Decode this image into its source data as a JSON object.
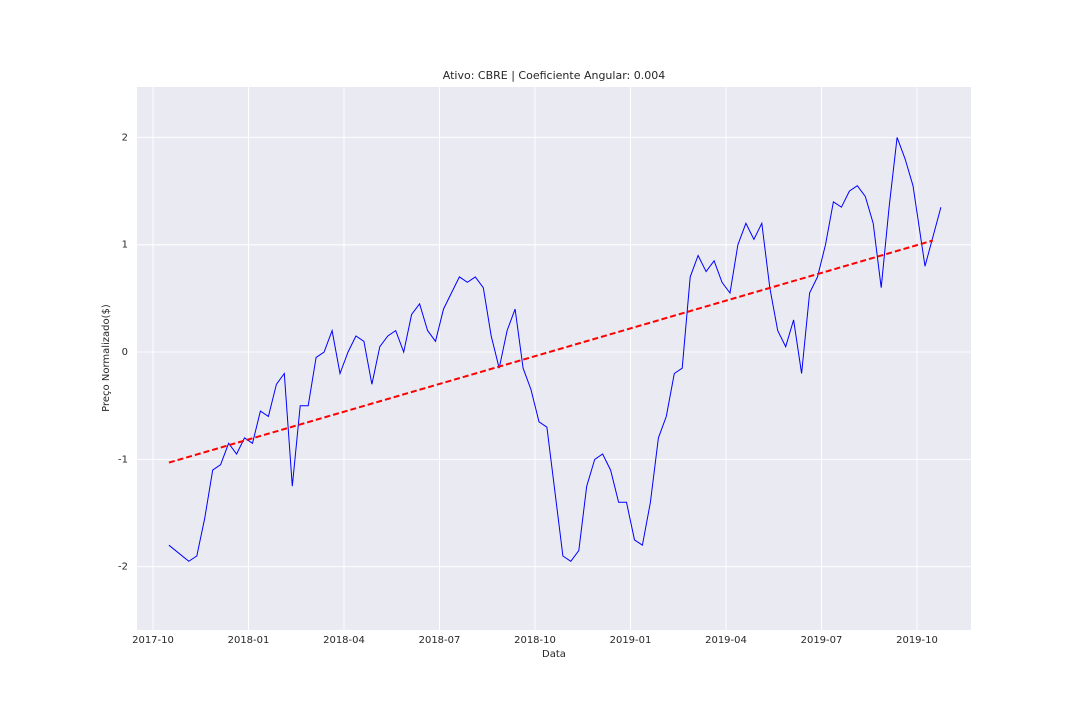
{
  "chart_data": {
    "type": "line",
    "title": "Ativo: CBRE | Coeficiente Angular: 0.004",
    "xlabel": "Data",
    "ylabel": "Preço Normalizado($)",
    "grid": true,
    "ylim": [
      -2.59,
      2.47
    ],
    "yticks": [
      -2,
      -1,
      0,
      1,
      2
    ],
    "xticks": [
      "2017-10",
      "2018-01",
      "2018-04",
      "2018-07",
      "2018-10",
      "2019-01",
      "2019-04",
      "2019-07",
      "2019-10"
    ],
    "series": [
      {
        "color": "#0000ff",
        "dash": false,
        "x": [
          "2017-10",
          "2017-11",
          "2017-11",
          "2017-11",
          "2017-11",
          "2017-12",
          "2017-12",
          "2017-12",
          "2017-12",
          "2018-01",
          "2018-01",
          "2018-01",
          "2018-01",
          "2018-02",
          "2018-02",
          "2018-02",
          "2018-02",
          "2018-03",
          "2018-03",
          "2018-03",
          "2018-03",
          "2018-04",
          "2018-04",
          "2018-04",
          "2018-04",
          "2018-05",
          "2018-05",
          "2018-05",
          "2018-05",
          "2018-06",
          "2018-06",
          "2018-06",
          "2018-06",
          "2018-07",
          "2018-07",
          "2018-07",
          "2018-07",
          "2018-08",
          "2018-08",
          "2018-08",
          "2018-08",
          "2018-09",
          "2018-09",
          "2018-09",
          "2018-09",
          "2018-10",
          "2018-10",
          "2018-10",
          "2018-10",
          "2018-11",
          "2018-11",
          "2018-11",
          "2018-11",
          "2018-12",
          "2018-12",
          "2018-12",
          "2018-12",
          "2019-01",
          "2019-01",
          "2019-01",
          "2019-01",
          "2019-02",
          "2019-02",
          "2019-02",
          "2019-02",
          "2019-03",
          "2019-03",
          "2019-03",
          "2019-03",
          "2019-04",
          "2019-04",
          "2019-04",
          "2019-04",
          "2019-05",
          "2019-05",
          "2019-05",
          "2019-05",
          "2019-06",
          "2019-06",
          "2019-06",
          "2019-06",
          "2019-07",
          "2019-07",
          "2019-07",
          "2019-07",
          "2019-08",
          "2019-08",
          "2019-08",
          "2019-08",
          "2019-09",
          "2019-09",
          "2019-09",
          "2019-09",
          "2019-10",
          "2019-10"
        ],
        "values": [
          -1.8,
          -1.95,
          -1.9,
          -1.55,
          -1.1,
          -1.05,
          -0.85,
          -0.95,
          -0.8,
          -0.85,
          -0.55,
          -0.6,
          -0.3,
          -0.2,
          -1.25,
          -0.5,
          -0.5,
          -0.05,
          0.0,
          0.2,
          -0.2,
          0.0,
          0.15,
          0.1,
          -0.3,
          0.05,
          0.15,
          0.2,
          0.0,
          0.35,
          0.45,
          0.2,
          0.1,
          0.4,
          0.55,
          0.7,
          0.65,
          0.7,
          0.6,
          0.15,
          -0.15,
          0.2,
          0.4,
          -0.15,
          -0.35,
          -0.65,
          -0.7,
          -1.3,
          -1.9,
          -1.95,
          -1.85,
          -1.25,
          -1.0,
          -0.95,
          -1.1,
          -1.4,
          -1.4,
          -1.75,
          -1.8,
          -1.4,
          -0.8,
          -0.6,
          -0.2,
          -0.15,
          0.7,
          0.9,
          0.75,
          0.85,
          0.65,
          0.55,
          1.0,
          1.2,
          1.05,
          1.2,
          0.6,
          0.2,
          0.05,
          0.3,
          -0.2,
          0.55,
          0.7,
          1.0,
          1.4,
          1.35,
          1.5,
          1.55,
          1.45,
          1.2,
          0.6,
          1.35,
          2.0,
          1.8,
          1.55,
          0.8,
          1.35
        ]
      },
      {
        "color": "#ff0000",
        "dash": true,
        "x": [
          "2017-10",
          "2019-10"
        ],
        "values": [
          -1.03,
          1.04
        ]
      }
    ]
  }
}
